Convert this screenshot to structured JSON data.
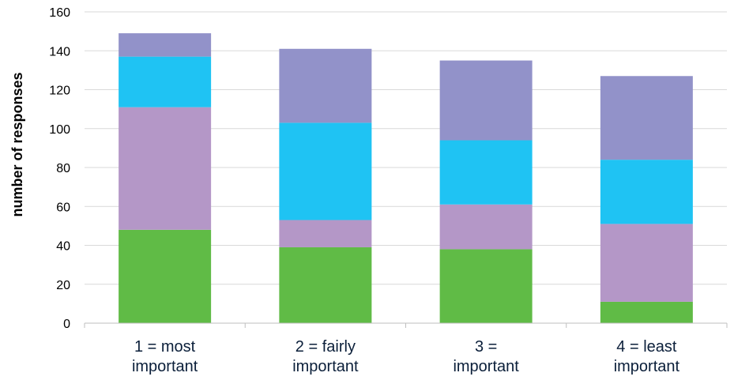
{
  "chart_data": {
    "type": "bar",
    "stacked": true,
    "title": "",
    "xlabel": "",
    "ylabel": "number of responses",
    "ylim": [
      0,
      160
    ],
    "yticks": [
      0,
      20,
      40,
      60,
      80,
      100,
      120,
      140,
      160
    ],
    "grid": "horizontal",
    "legend": "none",
    "categories": [
      [
        "1 = most",
        "important"
      ],
      [
        "2 = fairly",
        "important"
      ],
      [
        "3 =",
        "important"
      ],
      [
        "4 = least",
        "important"
      ]
    ],
    "series": [
      {
        "color": "#60bb46",
        "values": [
          48,
          39,
          38,
          11
        ]
      },
      {
        "color": "#b497c7",
        "values": [
          63,
          14,
          23,
          40
        ]
      },
      {
        "color": "#1fc3f3",
        "values": [
          26,
          50,
          33,
          33
        ]
      },
      {
        "color": "#9292c9",
        "values": [
          12,
          38,
          41,
          43
        ]
      }
    ]
  }
}
